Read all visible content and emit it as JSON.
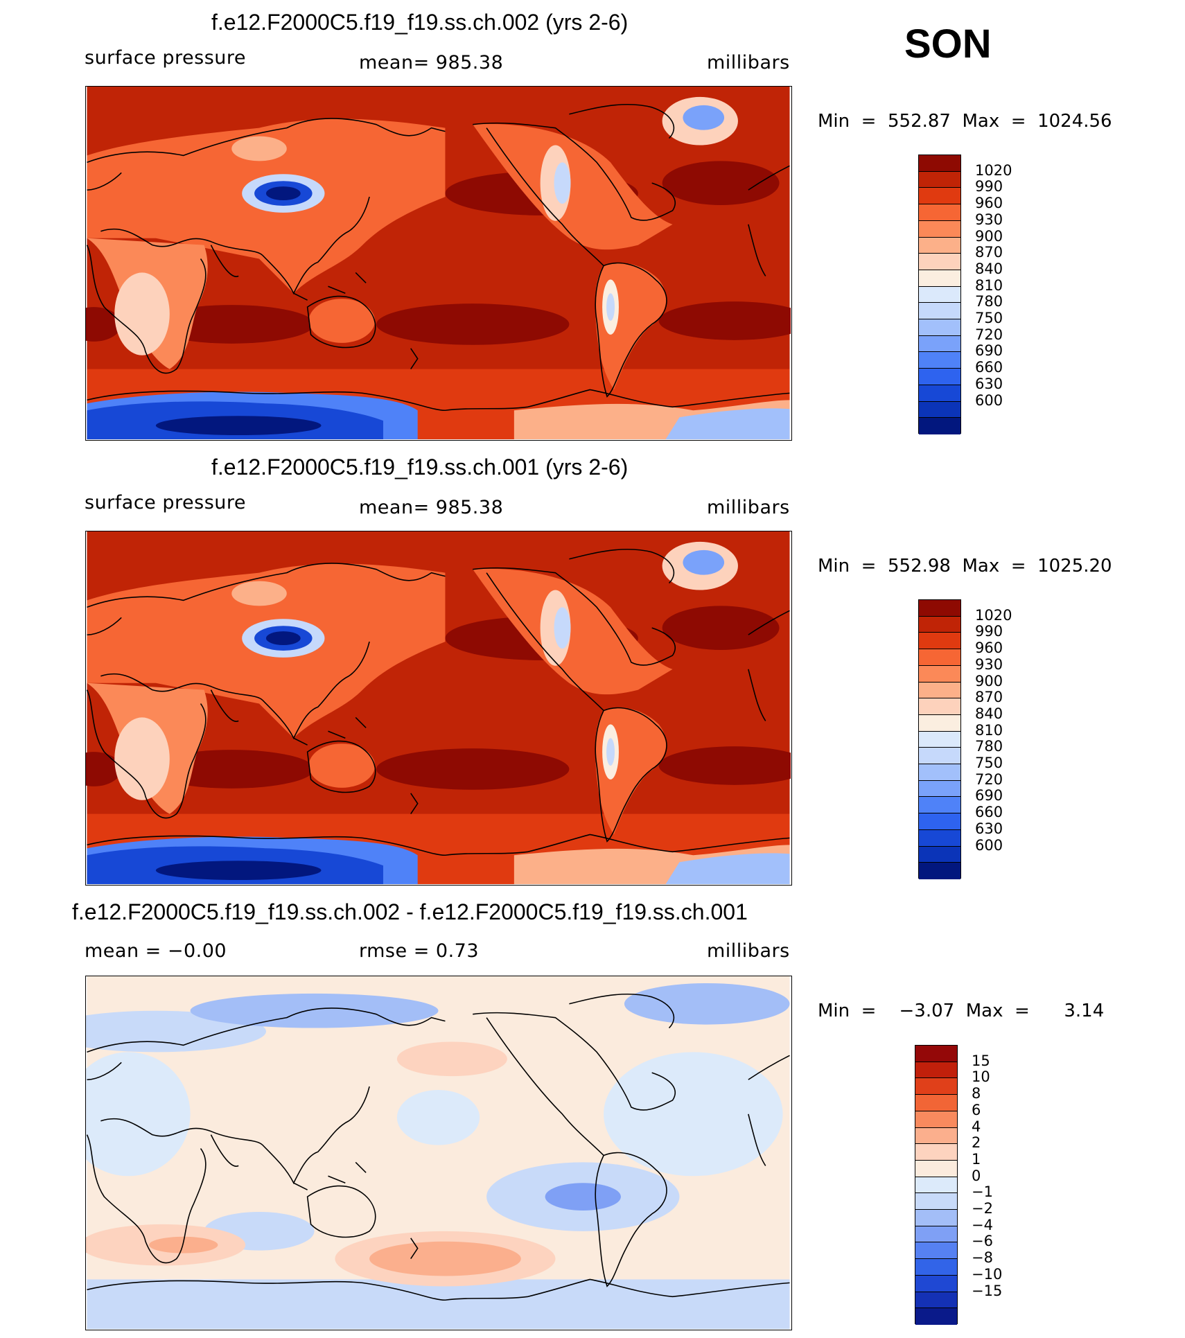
{
  "season": "SON",
  "colors": {
    "pressure_bins": [
      "#02177e",
      "#0b34b8",
      "#1748d6",
      "#2e63ef",
      "#4f82f8",
      "#7aa2fa",
      "#a2c0fb",
      "#c6d9fb",
      "#dbe9fb",
      "#fbeee0",
      "#fdd2bc",
      "#fcb089",
      "#fb8958",
      "#f66634",
      "#e03a10",
      "#c02406",
      "#8e0a02"
    ],
    "diff_bins": [
      "#0a1a8a",
      "#1431b5",
      "#1f48d3",
      "#3264e8",
      "#5681f2",
      "#7fa0f5",
      "#a3bef7",
      "#c8daf9",
      "#dceafa",
      "#fbebdd",
      "#fdd3bf",
      "#fbaf8d",
      "#f88a5e",
      "#f16536",
      "#e0401a",
      "#c1200b",
      "#940808"
    ],
    "land": "#000000"
  },
  "panels": [
    {
      "title": "f.e12.F2000C5.f19_f19.ss.ch.002 (yrs 2-6)",
      "left_label": "surface pressure",
      "center_label": "mean=  985.38",
      "right_label": "millibars",
      "minmax": "Min  =  552.87  Max  =  1024.56",
      "levels": [
        "1020",
        "990",
        "960",
        "930",
        "900",
        "870",
        "840",
        "810",
        "780",
        "750",
        "720",
        "690",
        "660",
        "630",
        "600"
      ]
    },
    {
      "title": "f.e12.F2000C5.f19_f19.ss.ch.001 (yrs 2-6)",
      "left_label": "surface pressure",
      "center_label": "mean=  985.38",
      "right_label": "millibars",
      "minmax": "Min  =  552.98  Max  =  1025.20",
      "levels": [
        "1020",
        "990",
        "960",
        "930",
        "900",
        "870",
        "840",
        "810",
        "780",
        "750",
        "720",
        "690",
        "660",
        "630",
        "600"
      ]
    },
    {
      "title": "f.e12.F2000C5.f19_f19.ss.ch.002 - f.e12.F2000C5.f19_f19.ss.ch.001",
      "left_label": "mean  =    −0.00",
      "center_label": "rmse  =      0.73",
      "right_label": "millibars",
      "minmax": "Min  =    −3.07  Max  =      3.14",
      "levels": [
        "15",
        "10",
        "8",
        "6",
        "4",
        "2",
        "1",
        "0",
        "−1",
        "−2",
        "−4",
        "−6",
        "−8",
        "−10",
        "−15"
      ]
    }
  ],
  "chart_data": [
    {
      "type": "heatmap",
      "title": "f.e12.F2000C5.f19_f19.ss.ch.002 (yrs 2-6)",
      "variable": "surface pressure",
      "units": "millibars",
      "mean": 985.38,
      "min": 552.87,
      "max": 1024.56,
      "contour_levels": [
        600,
        630,
        660,
        690,
        720,
        750,
        780,
        810,
        840,
        870,
        900,
        930,
        960,
        990,
        1020
      ],
      "projection": "cylindrical equidistant, centered on Pacific"
    },
    {
      "type": "heatmap",
      "title": "f.e12.F2000C5.f19_f19.ss.ch.001 (yrs 2-6)",
      "variable": "surface pressure",
      "units": "millibars",
      "mean": 985.38,
      "min": 552.98,
      "max": 1025.2,
      "contour_levels": [
        600,
        630,
        660,
        690,
        720,
        750,
        780,
        810,
        840,
        870,
        900,
        930,
        960,
        990,
        1020
      ],
      "projection": "cylindrical equidistant, centered on Pacific"
    },
    {
      "type": "heatmap",
      "title": "f.e12.F2000C5.f19_f19.ss.ch.002 - f.e12.F2000C5.f19_f19.ss.ch.001",
      "variable": "difference",
      "units": "millibars",
      "mean": -0.0,
      "rmse": 0.73,
      "min": -3.07,
      "max": 3.14,
      "contour_levels": [
        -15,
        -10,
        -8,
        -6,
        -4,
        -2,
        -1,
        0,
        1,
        2,
        4,
        6,
        8,
        10,
        15
      ],
      "projection": "cylindrical equidistant, centered on Pacific"
    }
  ]
}
